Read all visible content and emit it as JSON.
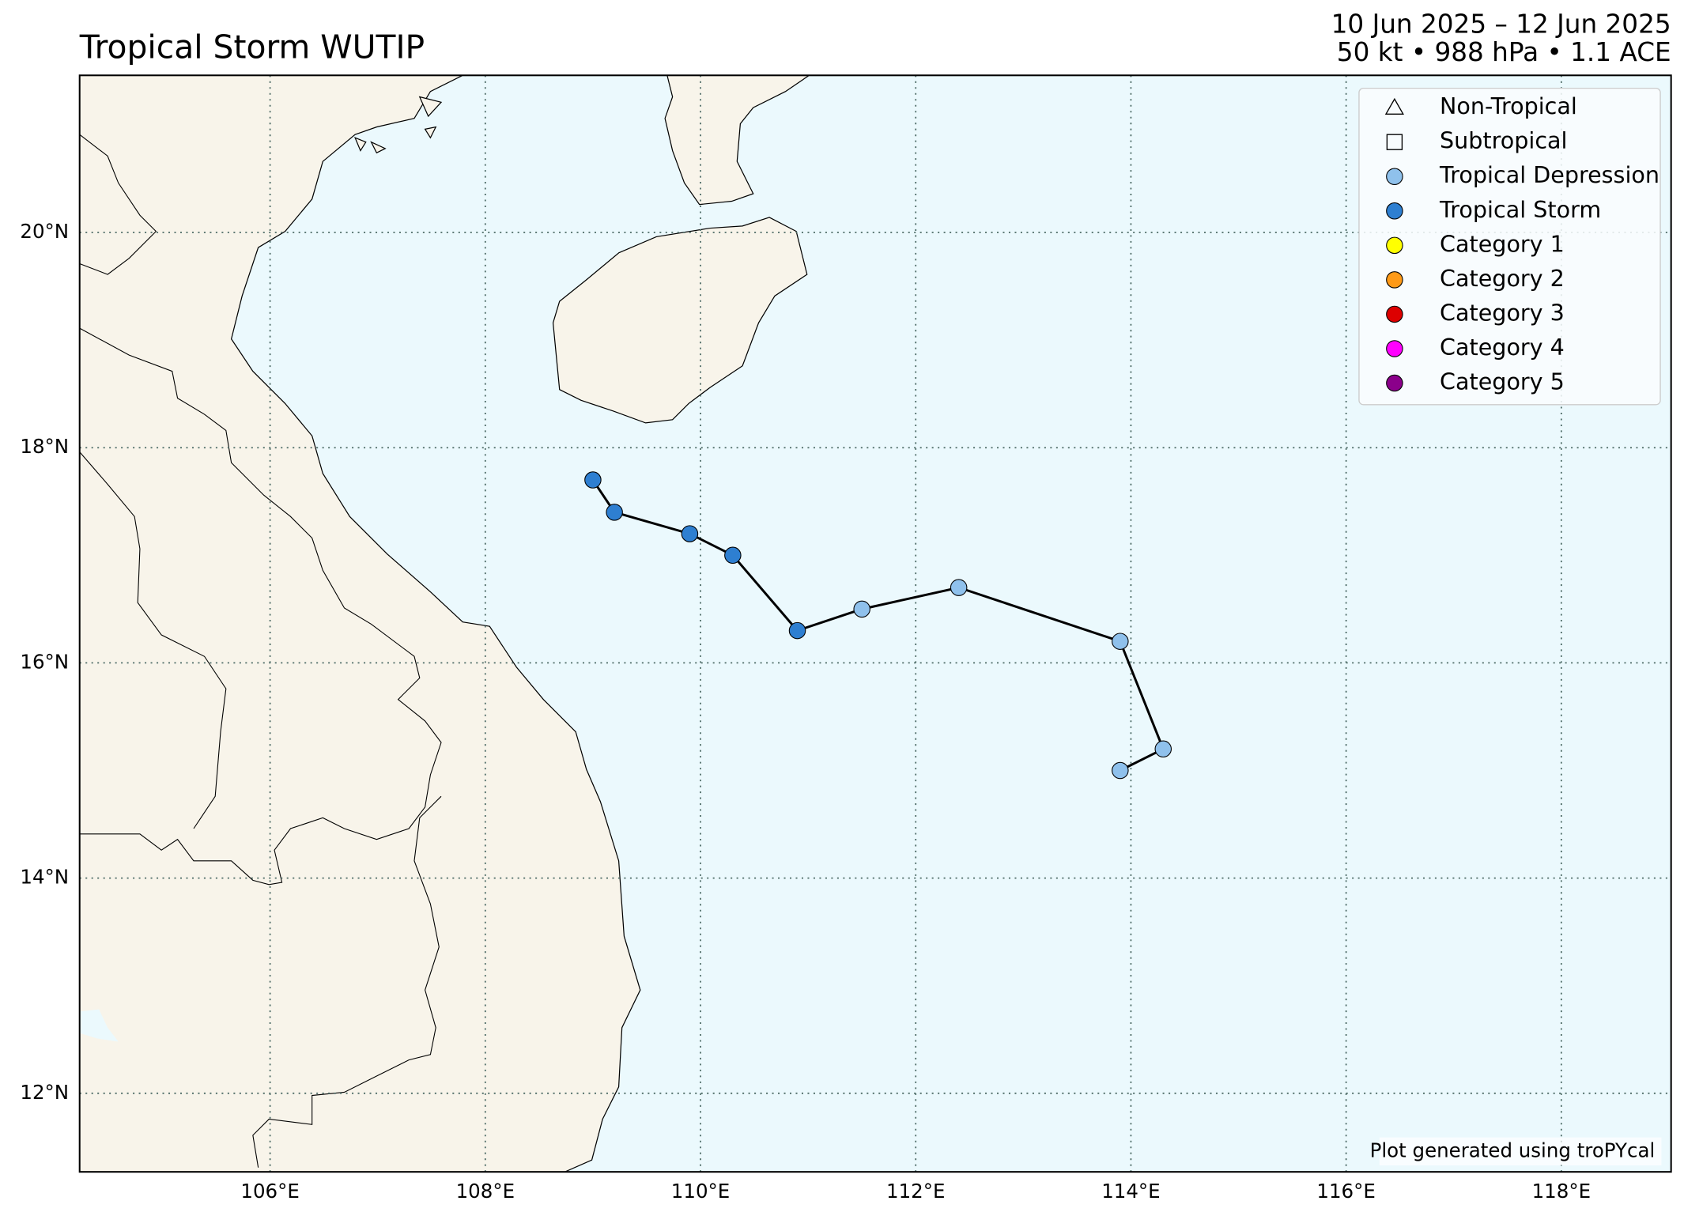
{
  "chart_data": {
    "type": "track",
    "title": "Tropical Storm WUTIP",
    "subtitle": [
      "10 Jun 2025 – 12 Jun 2025",
      "50 kt • 988 hPa • 1.1 ACE"
    ],
    "credit": "Plot generated using troPYcal",
    "xlim": [
      104.23,
      119.02
    ],
    "ylim": [
      11.27,
      21.46
    ],
    "xticks": [
      {
        "value": 106,
        "label": "106°E"
      },
      {
        "value": 108,
        "label": "108°E"
      },
      {
        "value": 110,
        "label": "110°E"
      },
      {
        "value": 112,
        "label": "112°E"
      },
      {
        "value": 114,
        "label": "114°E"
      },
      {
        "value": 116,
        "label": "116°E"
      },
      {
        "value": 118,
        "label": "118°E"
      }
    ],
    "yticks": [
      {
        "value": 12,
        "label": "12°N"
      },
      {
        "value": 14,
        "label": "14°N"
      },
      {
        "value": 16,
        "label": "16°N"
      },
      {
        "value": 18,
        "label": "18°N"
      },
      {
        "value": 20,
        "label": "20°N"
      }
    ],
    "grid": true,
    "legend": [
      {
        "name": "Non-Tropical",
        "marker": "triangle",
        "color": "none"
      },
      {
        "name": "Subtropical",
        "marker": "square",
        "color": "none"
      },
      {
        "name": "Tropical Depression",
        "marker": "circle",
        "color": "#8fc1ec"
      },
      {
        "name": "Tropical Storm",
        "marker": "circle",
        "color": "#2e7fd1"
      },
      {
        "name": "Category 1",
        "marker": "circle",
        "color": "#ffff00"
      },
      {
        "name": "Category 2",
        "marker": "circle",
        "color": "#ff9a17"
      },
      {
        "name": "Category 3",
        "marker": "circle",
        "color": "#dd0000"
      },
      {
        "name": "Category 4",
        "marker": "circle",
        "color": "#ff00ff"
      },
      {
        "name": "Category 5",
        "marker": "circle",
        "color": "#8b008b"
      }
    ],
    "track": {
      "x": [
        113.9,
        114.3,
        113.9,
        112.4,
        111.5,
        110.9,
        110.3,
        109.9,
        109.2,
        109.0
      ],
      "y": [
        15.0,
        15.2,
        16.2,
        16.7,
        16.5,
        16.3,
        17.0,
        17.2,
        17.4,
        17.7
      ],
      "legend_index": [
        2,
        2,
        2,
        2,
        2,
        3,
        3,
        3,
        3,
        3
      ]
    }
  }
}
